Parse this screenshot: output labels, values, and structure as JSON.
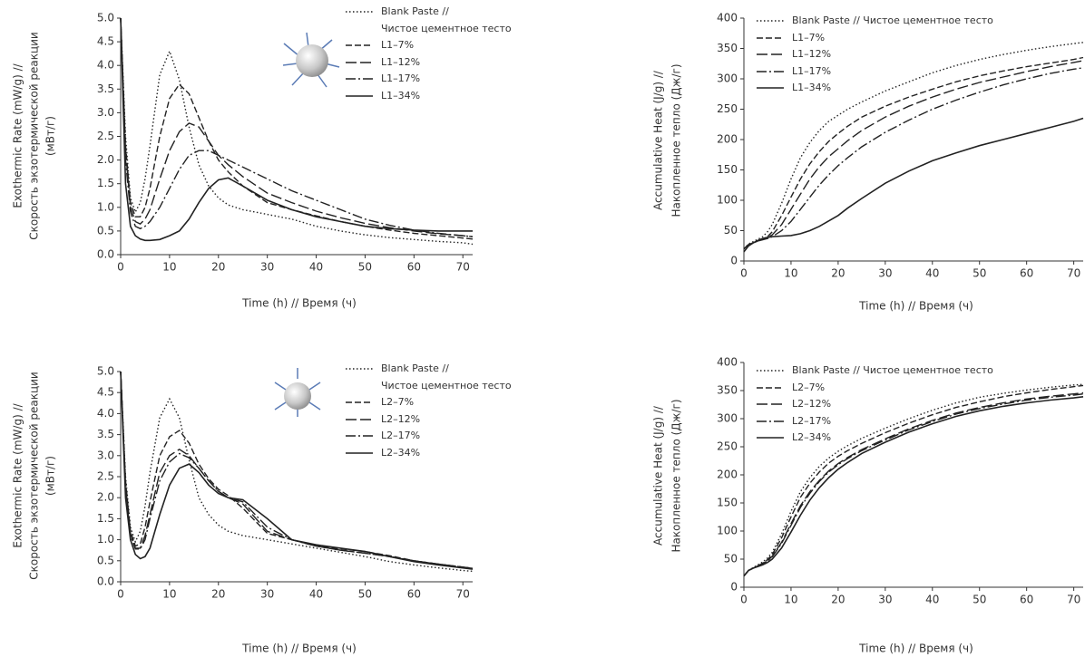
{
  "chart_data": [
    {
      "type": "line",
      "ylabel": [
        "Exothermic Rate (mW/g) //",
        "Скорость экзотермической реакции",
        "(мВт/г)"
      ],
      "xlabel": "Time (h) // Время (ч)",
      "xlim": [
        0,
        72
      ],
      "ylim": [
        0,
        5
      ],
      "grid": false,
      "xticks": [
        0,
        10,
        20,
        30,
        40,
        50,
        60,
        70
      ],
      "yticks": [
        {
          "value": 0,
          "label": "0.0"
        },
        0.5,
        {
          "value": 1,
          "label": "1.0"
        },
        1.5,
        {
          "value": 2,
          "label": "2.0"
        },
        2.5,
        {
          "value": 3,
          "label": "3.0"
        },
        3.5,
        {
          "value": 4,
          "label": "4.0"
        },
        4.5,
        {
          "value": 5,
          "label": "5.0"
        }
      ],
      "x": [
        0,
        1,
        2,
        3,
        4,
        5,
        6,
        8,
        10,
        12,
        14,
        16,
        18,
        20,
        22,
        25,
        30,
        35,
        40,
        45,
        50,
        55,
        60,
        65,
        70,
        72
      ],
      "series": [
        {
          "name": "Blank Paste //\nЧистое цементное тесто",
          "color": "#222",
          "dash": "dotted",
          "values": [
            5.0,
            2.5,
            1.2,
            0.9,
            1.1,
            1.6,
            2.3,
            3.8,
            4.3,
            3.7,
            2.7,
            1.9,
            1.45,
            1.2,
            1.05,
            0.95,
            0.85,
            0.75,
            0.6,
            0.5,
            0.42,
            0.36,
            0.32,
            0.28,
            0.25,
            0.22
          ]
        },
        {
          "name": "L1–7%",
          "color": "#222",
          "dash": "dashed",
          "values": [
            5.0,
            2.3,
            1.1,
            0.8,
            0.8,
            1.0,
            1.4,
            2.5,
            3.3,
            3.6,
            3.4,
            2.9,
            2.4,
            2.0,
            1.75,
            1.45,
            1.1,
            0.95,
            0.82,
            0.7,
            0.6,
            0.52,
            0.45,
            0.4,
            0.35,
            0.33
          ]
        },
        {
          "name": "L1–12%",
          "color": "#222",
          "dash": "longdash",
          "values": [
            5.0,
            2.2,
            1.0,
            0.7,
            0.65,
            0.75,
            0.95,
            1.6,
            2.2,
            2.6,
            2.78,
            2.7,
            2.4,
            2.1,
            1.9,
            1.65,
            1.3,
            1.1,
            0.92,
            0.78,
            0.66,
            0.57,
            0.5,
            0.44,
            0.4,
            0.38
          ]
        },
        {
          "name": "L1–17%",
          "color": "#222",
          "dash": "dashdot",
          "values": [
            5.0,
            2.0,
            0.9,
            0.6,
            0.55,
            0.6,
            0.7,
            1.0,
            1.4,
            1.8,
            2.1,
            2.2,
            2.2,
            2.1,
            2.0,
            1.85,
            1.6,
            1.35,
            1.15,
            0.95,
            0.75,
            0.62,
            0.52,
            0.45,
            0.4,
            0.38
          ]
        },
        {
          "name": "L1–34%",
          "color": "#222",
          "dash": "solid",
          "values": [
            5.0,
            1.5,
            0.6,
            0.4,
            0.33,
            0.3,
            0.3,
            0.32,
            0.4,
            0.5,
            0.75,
            1.1,
            1.4,
            1.58,
            1.62,
            1.45,
            1.15,
            0.95,
            0.8,
            0.7,
            0.6,
            0.55,
            0.52,
            0.5,
            0.5,
            0.5
          ]
        }
      ]
    },
    {
      "type": "line",
      "ylabel": [
        "Accumulative Heat (J/g) //",
        "Накопленное тепло (Дж/г)"
      ],
      "xlabel": "Time (h) // Время (ч)",
      "xlim": [
        0,
        72
      ],
      "ylim": [
        0,
        400
      ],
      "grid": false,
      "xticks": [
        0,
        10,
        20,
        30,
        40,
        50,
        60,
        70
      ],
      "yticks": [
        0,
        50,
        100,
        150,
        200,
        250,
        300,
        350,
        400
      ],
      "x": [
        0,
        1,
        2,
        3,
        4,
        5,
        6,
        8,
        10,
        12,
        14,
        16,
        18,
        20,
        22,
        25,
        30,
        35,
        40,
        45,
        50,
        55,
        60,
        65,
        70,
        72
      ],
      "series": [
        {
          "name": "Blank Paste // Чистое цементное тесто",
          "color": "#222",
          "dash": "dotted",
          "values": [
            20,
            28,
            32,
            36,
            40,
            48,
            60,
            95,
            135,
            170,
            195,
            215,
            230,
            240,
            250,
            262,
            280,
            295,
            310,
            322,
            332,
            340,
            347,
            353,
            358,
            360
          ]
        },
        {
          "name": "L1–7%",
          "color": "#222",
          "dash": "dashed",
          "values": [
            20,
            27,
            30,
            33,
            36,
            40,
            48,
            75,
            105,
            135,
            160,
            180,
            197,
            210,
            222,
            237,
            255,
            270,
            283,
            295,
            305,
            313,
            320,
            326,
            332,
            335
          ]
        },
        {
          "name": "L1–12%",
          "color": "#222",
          "dash": "longdash",
          "values": [
            20,
            27,
            30,
            33,
            36,
            39,
            43,
            60,
            85,
            110,
            135,
            155,
            172,
            185,
            198,
            215,
            237,
            255,
            270,
            283,
            294,
            303,
            312,
            320,
            327,
            330
          ]
        },
        {
          "name": "L1–17%",
          "color": "#222",
          "dash": "dashdot",
          "values": [
            20,
            27,
            30,
            33,
            35,
            37,
            40,
            50,
            65,
            85,
            105,
            125,
            142,
            157,
            170,
            188,
            212,
            232,
            250,
            265,
            278,
            290,
            300,
            309,
            316,
            318
          ]
        },
        {
          "name": "L1–34%",
          "color": "#222",
          "dash": "solid",
          "values": [
            15,
            25,
            30,
            34,
            37,
            39,
            40,
            41,
            42,
            45,
            50,
            57,
            66,
            75,
            87,
            103,
            128,
            148,
            165,
            178,
            190,
            200,
            210,
            220,
            230,
            235
          ]
        }
      ]
    },
    {
      "type": "line",
      "ylabel": [
        "Exothermic Rate (mW/g) //",
        "Скорость экзотермической реакции",
        "(мВт/г)"
      ],
      "xlabel": "Time (h) // Время (ч)",
      "xlim": [
        0,
        72
      ],
      "ylim": [
        0,
        5
      ],
      "grid": false,
      "xticks": [
        0,
        10,
        20,
        30,
        40,
        50,
        60,
        70
      ],
      "yticks": [
        {
          "value": 0,
          "label": "0.0"
        },
        0.5,
        {
          "value": 1,
          "label": "1.0"
        },
        1.5,
        {
          "value": 2,
          "label": "2.0"
        },
        2.5,
        {
          "value": 3,
          "label": "3.0"
        },
        3.5,
        {
          "value": 4,
          "label": "4.0"
        },
        4.5,
        {
          "value": 5,
          "label": "5.0"
        }
      ],
      "x": [
        0,
        1,
        2,
        3,
        4,
        5,
        6,
        8,
        10,
        12,
        14,
        16,
        18,
        20,
        22,
        25,
        30,
        35,
        40,
        45,
        50,
        55,
        60,
        65,
        70,
        72
      ],
      "series": [
        {
          "name": "Blank Paste //\nЧистое цементное тесто",
          "color": "#222",
          "dash": "dotted",
          "values": [
            5.0,
            2.5,
            1.3,
            0.95,
            1.2,
            1.8,
            2.6,
            3.9,
            4.35,
            3.9,
            2.9,
            2.0,
            1.6,
            1.35,
            1.2,
            1.1,
            1.0,
            0.9,
            0.8,
            0.7,
            0.6,
            0.48,
            0.4,
            0.33,
            0.27,
            0.25
          ]
        },
        {
          "name": "L2–7%",
          "color": "#222",
          "dash": "dashed",
          "values": [
            5.0,
            2.4,
            1.2,
            0.85,
            0.9,
            1.3,
            1.9,
            3.0,
            3.45,
            3.6,
            3.3,
            2.8,
            2.45,
            2.2,
            2.05,
            1.75,
            1.15,
            1.0,
            0.85,
            0.78,
            0.72,
            0.62,
            0.5,
            0.42,
            0.35,
            0.32
          ]
        },
        {
          "name": "L2–12%",
          "color": "#222",
          "dash": "longdash",
          "values": [
            5.0,
            2.3,
            1.15,
            0.8,
            0.8,
            1.1,
            1.6,
            2.6,
            3.0,
            3.15,
            3.0,
            2.7,
            2.4,
            2.15,
            2.0,
            1.85,
            1.2,
            1.0,
            0.85,
            0.75,
            0.68,
            0.6,
            0.5,
            0.42,
            0.35,
            0.32
          ]
        },
        {
          "name": "L2–17%",
          "color": "#222",
          "dash": "dashdot",
          "values": [
            5.0,
            2.2,
            1.1,
            0.78,
            0.78,
            1.0,
            1.5,
            2.4,
            2.85,
            3.05,
            2.95,
            2.7,
            2.4,
            2.15,
            2.0,
            1.9,
            1.3,
            1.0,
            0.85,
            0.75,
            0.68,
            0.6,
            0.5,
            0.42,
            0.35,
            0.32
          ]
        },
        {
          "name": "L2–34%",
          "color": "#222",
          "dash": "solid",
          "values": [
            5.0,
            2.0,
            1.0,
            0.65,
            0.55,
            0.6,
            0.8,
            1.6,
            2.3,
            2.7,
            2.8,
            2.6,
            2.3,
            2.1,
            2.0,
            1.95,
            1.5,
            1.0,
            0.88,
            0.8,
            0.72,
            0.6,
            0.48,
            0.4,
            0.33,
            0.3
          ]
        }
      ]
    },
    {
      "type": "line",
      "ylabel": [
        "Accumulative Heat (J/g) //",
        "Накопленное тепло (Дж/г)"
      ],
      "xlabel": "Time (h) // Время (ч)",
      "xlim": [
        0,
        72
      ],
      "ylim": [
        0,
        400
      ],
      "grid": false,
      "xticks": [
        0,
        10,
        20,
        30,
        40,
        50,
        60,
        70
      ],
      "yticks": [
        0,
        50,
        100,
        150,
        200,
        250,
        300,
        350,
        400
      ],
      "x": [
        0,
        1,
        2,
        3,
        4,
        5,
        6,
        8,
        10,
        12,
        14,
        16,
        18,
        20,
        22,
        25,
        30,
        35,
        40,
        45,
        50,
        55,
        60,
        65,
        70,
        72
      ],
      "series": [
        {
          "name": "Blank Paste // Чистое цементное тесто",
          "color": "#222",
          "dash": "dotted",
          "values": [
            20,
            30,
            35,
            40,
            45,
            52,
            62,
            95,
            135,
            170,
            195,
            215,
            230,
            242,
            252,
            265,
            283,
            300,
            315,
            328,
            338,
            345,
            351,
            356,
            360,
            361
          ]
        },
        {
          "name": "L2–7%",
          "color": "#222",
          "dash": "dashed",
          "values": [
            20,
            30,
            34,
            38,
            43,
            49,
            58,
            88,
            125,
            160,
            185,
            205,
            221,
            233,
            243,
            256,
            275,
            292,
            307,
            320,
            330,
            339,
            346,
            352,
            357,
            359
          ]
        },
        {
          "name": "L2–12%",
          "color": "#222",
          "dash": "longdash",
          "values": [
            20,
            30,
            34,
            38,
            42,
            47,
            55,
            80,
            113,
            145,
            170,
            190,
            207,
            220,
            231,
            245,
            264,
            282,
            297,
            310,
            320,
            328,
            335,
            340,
            344,
            346
          ]
        },
        {
          "name": "L2–17%",
          "color": "#222",
          "dash": "dashdot",
          "values": [
            20,
            30,
            34,
            38,
            42,
            47,
            54,
            78,
            110,
            142,
            167,
            188,
            205,
            218,
            229,
            243,
            262,
            280,
            295,
            308,
            318,
            326,
            333,
            338,
            342,
            344
          ]
        },
        {
          "name": "L2–34%",
          "color": "#222",
          "dash": "solid",
          "values": [
            20,
            30,
            34,
            37,
            40,
            44,
            50,
            70,
            98,
            128,
            155,
            177,
            195,
            210,
            222,
            238,
            258,
            276,
            291,
            304,
            314,
            322,
            328,
            333,
            337,
            339
          ]
        }
      ]
    }
  ]
}
